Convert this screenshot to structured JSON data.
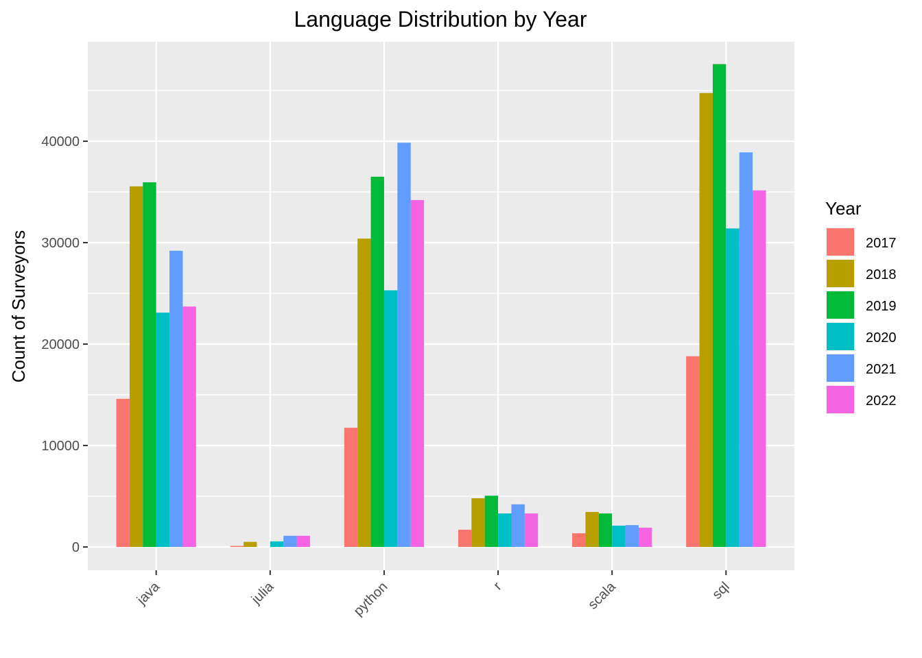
{
  "chart_data": {
    "type": "bar",
    "title": "Language Distribution by Year",
    "xlabel": "",
    "ylabel": "Count of Surveyors",
    "categories": [
      "java",
      "julia",
      "python",
      "r",
      "scala",
      "sql"
    ],
    "yticks": [
      0,
      10000,
      20000,
      30000,
      40000
    ],
    "ylim": [
      -2300,
      49800
    ],
    "grid": true,
    "legend": {
      "title": "Year",
      "position": "right"
    },
    "series": [
      {
        "name": "2017",
        "color": "#F8766D",
        "values": [
          14600,
          100,
          11750,
          1700,
          1350,
          18800
        ]
      },
      {
        "name": "2018",
        "color": "#B79F00",
        "values": [
          35550,
          500,
          30400,
          4800,
          3450,
          44750
        ]
      },
      {
        "name": "2019",
        "color": "#00BA38",
        "values": [
          35950,
          0,
          36500,
          5050,
          3300,
          47600
        ]
      },
      {
        "name": "2020",
        "color": "#00BFC4",
        "values": [
          23100,
          550,
          25300,
          3300,
          2100,
          31400
        ]
      },
      {
        "name": "2021",
        "color": "#619CFF",
        "values": [
          29200,
          1100,
          39850,
          4200,
          2150,
          38900
        ]
      },
      {
        "name": "2022",
        "color": "#F564E3",
        "values": [
          23700,
          1100,
          34200,
          3300,
          1900,
          35150
        ]
      }
    ]
  }
}
